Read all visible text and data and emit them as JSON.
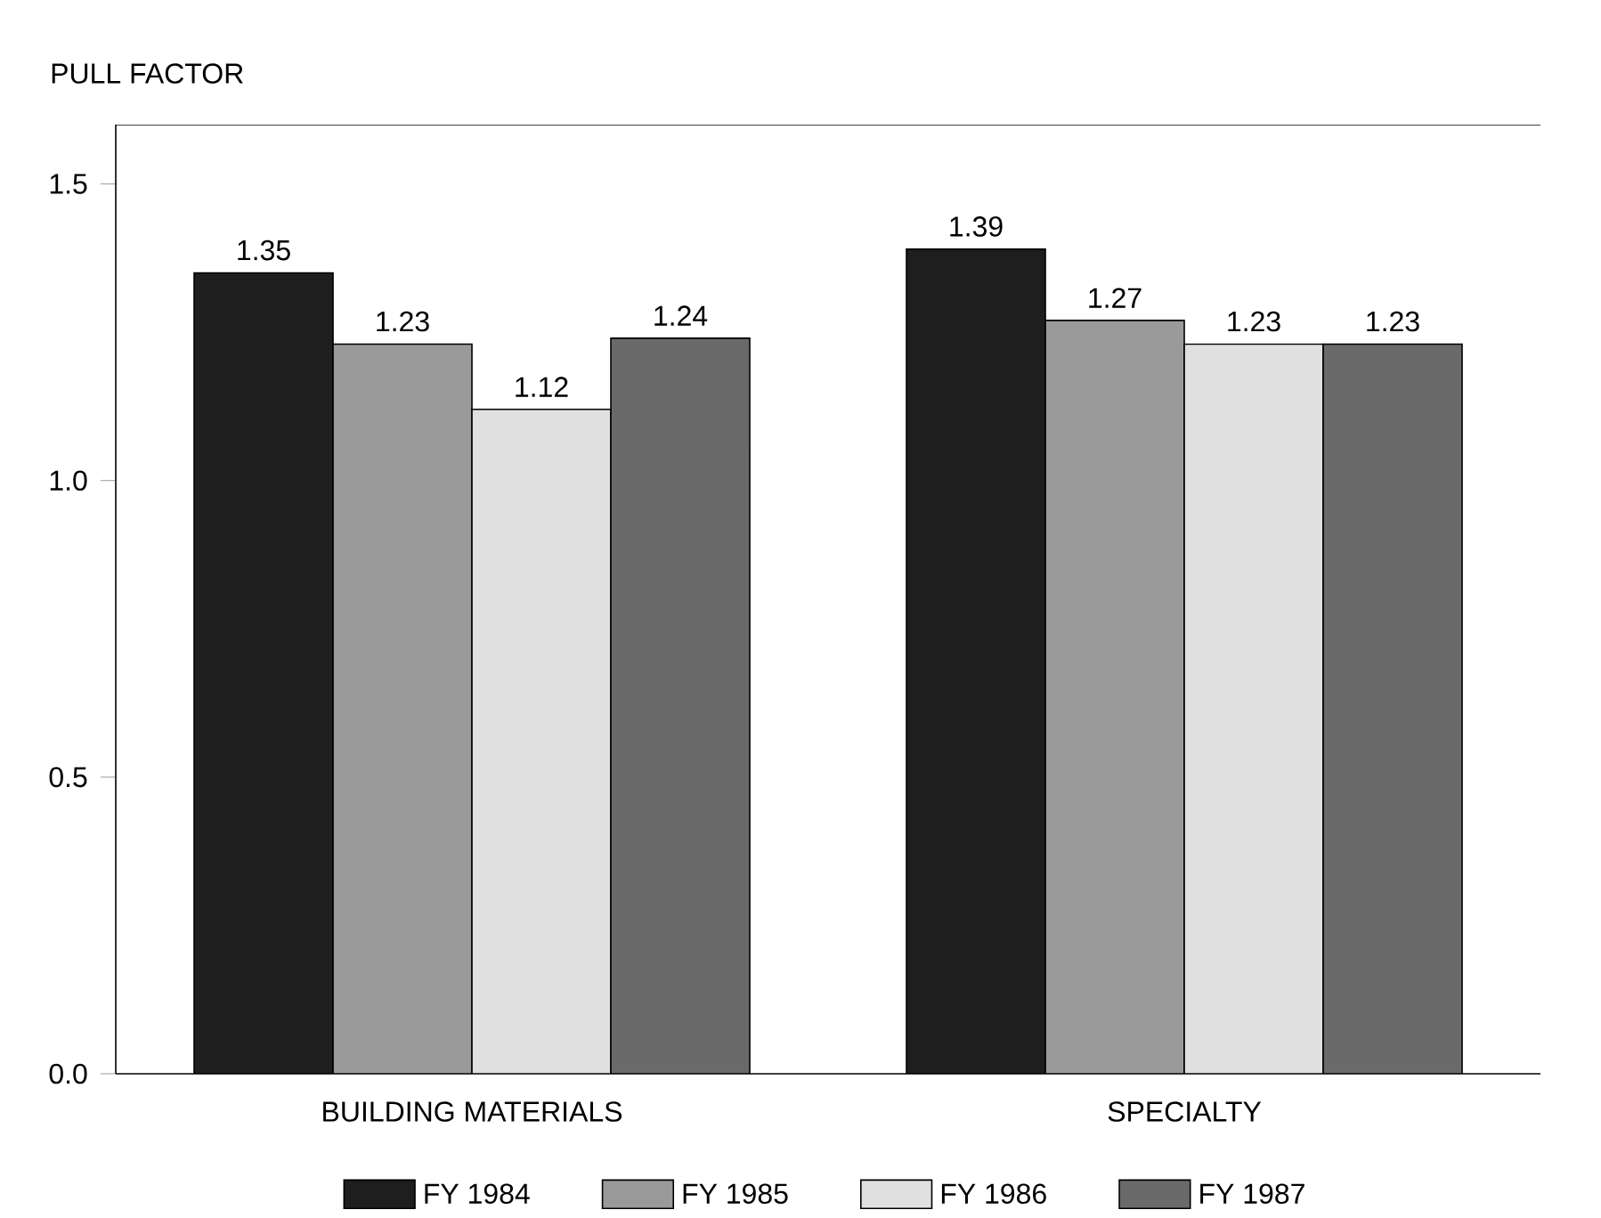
{
  "chart_data": {
    "type": "bar",
    "ylabel": "PULL FACTOR",
    "categories": [
      "BUILDING MATERIALS",
      "SPECIALTY"
    ],
    "series": [
      {
        "name": "FY 1984",
        "color": "#1e1e1e",
        "values": [
          1.35,
          1.39
        ]
      },
      {
        "name": "FY 1985",
        "color": "#9a9a9a",
        "values": [
          1.23,
          1.27
        ]
      },
      {
        "name": "FY 1986",
        "color": "#e0e0e0",
        "values": [
          1.12,
          1.23
        ]
      },
      {
        "name": "FY 1987",
        "color": "#6a6a6a",
        "values": [
          1.24,
          1.23
        ]
      }
    ],
    "ylim": [
      0,
      1.6
    ],
    "yticks": [
      {
        "value": 0,
        "label": "0.0"
      },
      {
        "value": 0.5,
        "label": "0.5"
      },
      {
        "value": 1,
        "label": "1.0"
      },
      {
        "value": 1.5,
        "label": "1.5"
      }
    ],
    "data_labels": true,
    "legend": "bottom"
  }
}
